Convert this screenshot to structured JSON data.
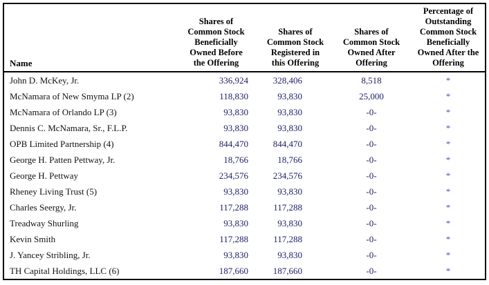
{
  "table": {
    "columns": [
      {
        "label": "Name"
      },
      {
        "label": "Shares of\nCommon Stock\nBeneficially\nOwned Before\nthe Offering"
      },
      {
        "label": "Shares of\nCommon Stock\nRegistered in\nthis Offering"
      },
      {
        "label": "Shares of\nCommon Stock\nOwned After\nOffering"
      },
      {
        "label": "Percentage of\nOutstanding\nCommon Stock\nBeneficially\nOwned After the\nOffering"
      }
    ],
    "rows": [
      {
        "name": "John D. McKey, Jr.",
        "before": "336,924",
        "registered": "328,406",
        "after": "8,518",
        "pct": "*"
      },
      {
        "name": "McNamara of New Smyma LP (2)",
        "before": "118,830",
        "registered": "93,830",
        "after": "25,000",
        "pct": "*"
      },
      {
        "name": "McNamara of Orlando LP (3)",
        "before": "93,830",
        "registered": "93,830",
        "after": "-0-",
        "pct": "*"
      },
      {
        "name": "Dennis C. McNamara, Sr., F.L.P.",
        "before": "93,830",
        "registered": "93,830",
        "after": "-0-",
        "pct": "*"
      },
      {
        "name": "OPB Limited Partnership (4)",
        "before": "844,470",
        "registered": "844,470",
        "after": "-0-",
        "pct": "*"
      },
      {
        "name": "George H. Patten Pettway, Jr.",
        "before": "18,766",
        "registered": "18,766",
        "after": "-0-",
        "pct": "*"
      },
      {
        "name": "George H. Pettway",
        "before": "234,576",
        "registered": "234,576",
        "after": "-0-",
        "pct": "*"
      },
      {
        "name": "Rheney Living Trust (5)",
        "before": "93,830",
        "registered": "93,830",
        "after": "-0-",
        "pct": "*"
      },
      {
        "name": "Charles Seergy,  Jr.",
        "before": "117,288",
        "registered": "117,288",
        "after": "-0-",
        "pct": "*"
      },
      {
        "name": "Treadway Shurling",
        "before": "93,830",
        "registered": "93,830",
        "after": "-0-",
        "pct": "*"
      },
      {
        "name": "Kevin Smith",
        "before": "117,288",
        "registered": "117,288",
        "after": "-0-",
        "pct": "*"
      },
      {
        "name": "J. Yancey Stribling,  Jr.",
        "before": "93,830",
        "registered": "93,830",
        "after": "-0-",
        "pct": "*"
      },
      {
        "name": "TH Capital Holdings,  LLC (6)",
        "before": "187,660",
        "registered": "187,660",
        "after": "-0-",
        "pct": "*"
      }
    ]
  }
}
